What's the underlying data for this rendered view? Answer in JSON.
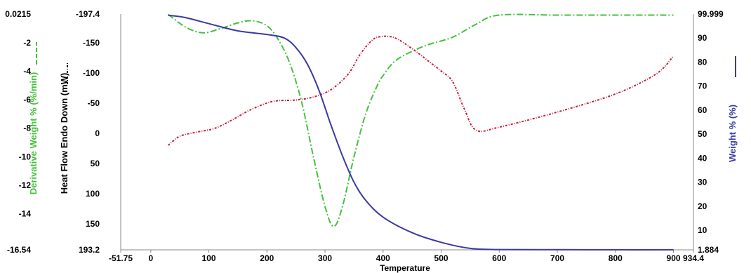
{
  "chart_data": {
    "type": "line",
    "xlabel": "Temperature",
    "x_ticks": [
      "-51.75",
      "0",
      "100",
      "200",
      "300",
      "400",
      "500",
      "600",
      "700",
      "800",
      "900",
      "934.4"
    ],
    "xlim": [
      -51.75,
      934.4
    ],
    "axes": {
      "derivative": {
        "label": "Derivative Weight % (%/min)",
        "color": "#44c13c",
        "ylim": [
          -16.54,
          0.0215
        ],
        "ticks": [
          "0.0215",
          "-2",
          "-4",
          "-6",
          "-8",
          "-10",
          "-12",
          "-14",
          "-16.54"
        ]
      },
      "heat_flow": {
        "label": "Heat Flow Endo Down (mW)",
        "color": "#000000",
        "ylim": [
          193.2,
          -197.4
        ],
        "ticks": [
          "-197.4",
          "-150",
          "-100",
          "-50",
          "0",
          "50",
          "100",
          "150",
          "193.2"
        ]
      },
      "weight": {
        "label": "Weight % (%)",
        "color": "#3b3aa0",
        "ylim": [
          1.884,
          99.999
        ],
        "ticks": [
          "99.999",
          "90",
          "80",
          "70",
          "60",
          "50",
          "40",
          "30",
          "20",
          "10",
          "1.884"
        ]
      }
    },
    "series": [
      {
        "axis": "derivative",
        "color": "#44c13c",
        "x": [
          30,
          60,
          90,
          120,
          150,
          175,
          200,
          220,
          240,
          260,
          280,
          300,
          315,
          330,
          350,
          370,
          390,
          400,
          420,
          450,
          480,
          520,
          560,
          600,
          700,
          800,
          900
        ],
        "y": [
          0.0,
          -0.9,
          -1.3,
          -1.0,
          -0.6,
          -0.45,
          -0.8,
          -1.8,
          -3.5,
          -6.2,
          -10.0,
          -13.5,
          -14.9,
          -13.5,
          -10.0,
          -7.0,
          -5.0,
          -4.3,
          -3.3,
          -2.6,
          -2.1,
          -1.6,
          -0.7,
          -0.05,
          -0.05,
          -0.05,
          -0.05
        ]
      },
      {
        "axis": "heat_flow",
        "color": "#c4203a",
        "x": [
          30,
          50,
          80,
          110,
          140,
          170,
          200,
          220,
          250,
          280,
          310,
          340,
          360,
          380,
          395,
          420,
          450,
          480,
          500,
          520,
          540,
          560,
          600,
          700,
          800,
          870,
          900
        ],
        "y": [
          20,
          5,
          -2,
          -8,
          -22,
          -38,
          -50,
          -54,
          -55,
          -60,
          -72,
          -98,
          -130,
          -153,
          -160,
          -158,
          -140,
          -118,
          -103,
          -85,
          -40,
          -5,
          -10,
          -35,
          -65,
          -98,
          -128
        ]
      },
      {
        "axis": "weight",
        "color": "#3b3aa0",
        "x": [
          30,
          60,
          100,
          150,
          200,
          230,
          250,
          270,
          290,
          310,
          330,
          350,
          370,
          400,
          450,
          500,
          550,
          600,
          700,
          800,
          900
        ],
        "y": [
          99.5,
          98.5,
          96.0,
          93.0,
          91.5,
          90.0,
          86.0,
          79.0,
          68.0,
          54.0,
          41.0,
          30.0,
          22.5,
          15.5,
          9.0,
          5.0,
          2.5,
          2.0,
          1.95,
          1.9,
          1.9
        ]
      }
    ],
    "grid": false,
    "legend": "none"
  }
}
